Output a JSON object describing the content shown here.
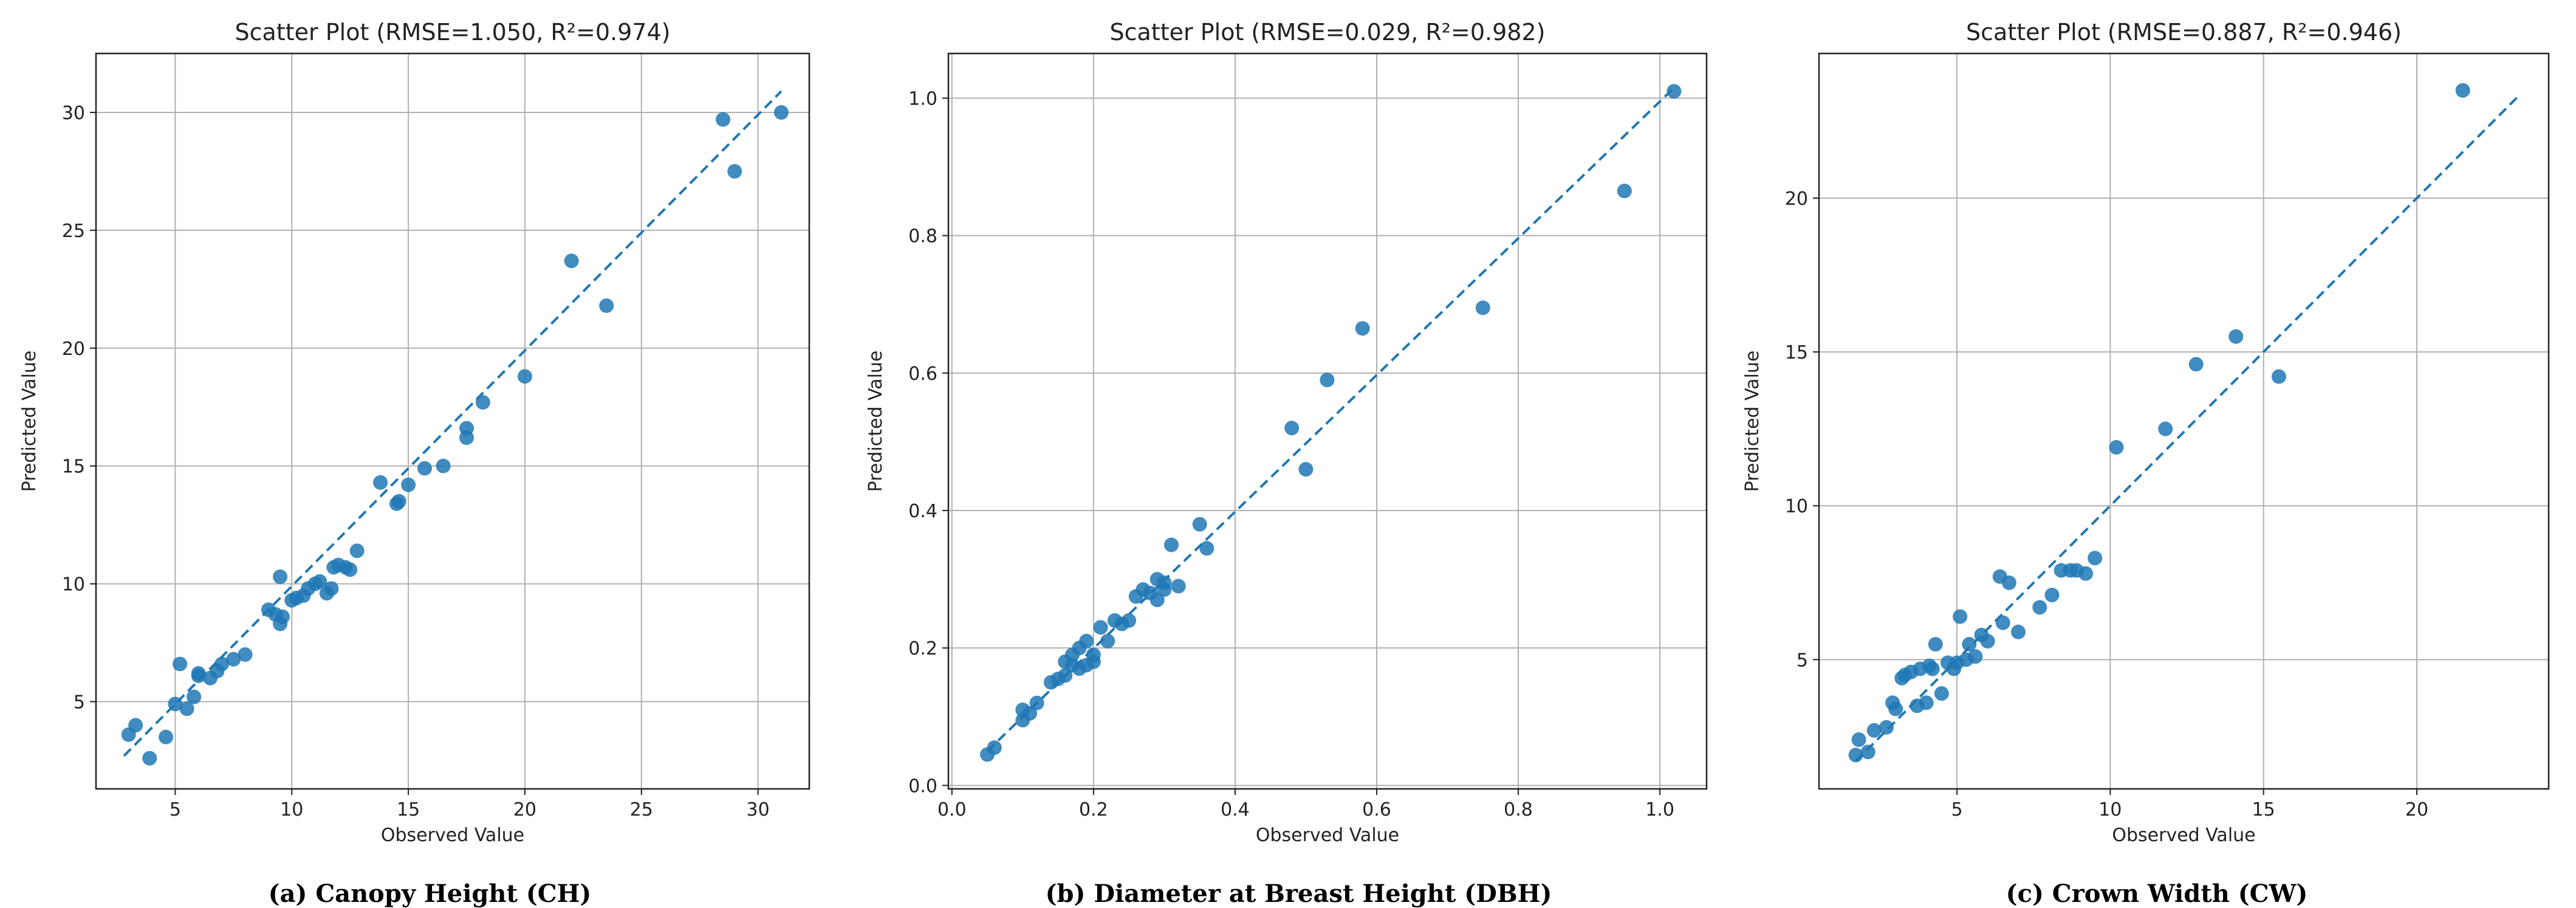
{
  "chart_data": [
    {
      "type": "scatter",
      "title": "Scatter Plot (RMSE=1.050, R²=0.974)",
      "xlabel": "Observed Value",
      "ylabel": "Predicted Value",
      "caption": "(a) Canopy Height (CH)",
      "xlim": [
        1.6,
        32.2
      ],
      "ylim": [
        1.3,
        32.5
      ],
      "xticks": [
        5,
        10,
        15,
        20,
        25,
        30
      ],
      "yticks": [
        5,
        10,
        15,
        20,
        25,
        30
      ],
      "grid": true,
      "point_color": "#1f77b4",
      "fit_line": {
        "style": "dashed",
        "color": "#1f77b4",
        "x": [
          2.8,
          31.0
        ],
        "y": [
          2.7,
          30.9
        ]
      },
      "points": {
        "x": [
          3.0,
          3.3,
          3.9,
          4.6,
          5.0,
          5.2,
          5.5,
          5.8,
          6.0,
          6.0,
          6.5,
          6.8,
          7.0,
          7.5,
          8.0,
          9.0,
          9.3,
          9.5,
          9.5,
          9.6,
          10.0,
          10.2,
          10.5,
          10.7,
          11.0,
          11.2,
          11.5,
          11.7,
          11.8,
          12.0,
          12.3,
          12.5,
          12.8,
          13.8,
          14.5,
          14.6,
          15.0,
          15.7,
          16.5,
          17.5,
          17.5,
          18.2,
          20.0,
          22.0,
          23.5,
          28.5,
          29.0,
          31.0
        ],
        "y": [
          3.6,
          4.0,
          2.6,
          3.5,
          4.9,
          6.6,
          4.7,
          5.2,
          6.1,
          6.2,
          6.0,
          6.3,
          6.6,
          6.8,
          7.0,
          8.9,
          8.7,
          8.3,
          10.3,
          8.6,
          9.3,
          9.4,
          9.5,
          9.8,
          10.0,
          10.1,
          9.6,
          9.8,
          10.7,
          10.8,
          10.7,
          10.6,
          11.4,
          14.3,
          13.4,
          13.5,
          14.2,
          14.9,
          15.0,
          16.2,
          16.6,
          17.7,
          18.8,
          23.7,
          21.8,
          29.7,
          27.5,
          30.0
        ]
      }
    },
    {
      "type": "scatter",
      "title": "Scatter Plot (RMSE=0.029, R²=0.982)",
      "xlabel": "Observed Value",
      "ylabel": "Predicted Value",
      "caption": "(b) Diameter at Breast Height (DBH)",
      "xlim": [
        -0.005,
        1.066
      ],
      "ylim": [
        -0.005,
        1.065
      ],
      "xticks": [
        0.0,
        0.2,
        0.4,
        0.6,
        0.8,
        1.0
      ],
      "xtick_labels": [
        "0.0",
        "0.2",
        "0.4",
        "0.6",
        "0.8",
        "1.0"
      ],
      "yticks": [
        0.0,
        0.2,
        0.4,
        0.6,
        0.8,
        1.0
      ],
      "ytick_labels": [
        "0.0",
        "0.2",
        "0.4",
        "0.6",
        "0.8",
        "1.0"
      ],
      "grid": true,
      "point_color": "#1f77b4",
      "fit_line": {
        "style": "dashed",
        "color": "#1f77b4",
        "x": [
          0.05,
          1.02
        ],
        "y": [
          0.05,
          1.015
        ]
      },
      "points": {
        "x": [
          0.05,
          0.06,
          0.1,
          0.1,
          0.11,
          0.12,
          0.14,
          0.15,
          0.16,
          0.16,
          0.17,
          0.17,
          0.18,
          0.18,
          0.19,
          0.19,
          0.2,
          0.2,
          0.21,
          0.22,
          0.23,
          0.24,
          0.25,
          0.26,
          0.27,
          0.28,
          0.29,
          0.29,
          0.3,
          0.3,
          0.31,
          0.32,
          0.35,
          0.36,
          0.48,
          0.5,
          0.53,
          0.58,
          0.75,
          0.95,
          1.02
        ],
        "y": [
          0.045,
          0.055,
          0.095,
          0.11,
          0.105,
          0.12,
          0.15,
          0.155,
          0.16,
          0.18,
          0.175,
          0.19,
          0.17,
          0.2,
          0.175,
          0.21,
          0.19,
          0.18,
          0.23,
          0.21,
          0.24,
          0.235,
          0.24,
          0.275,
          0.285,
          0.28,
          0.3,
          0.27,
          0.285,
          0.295,
          0.35,
          0.29,
          0.38,
          0.345,
          0.52,
          0.46,
          0.59,
          0.665,
          0.695,
          0.865,
          1.01
        ]
      }
    },
    {
      "type": "scatter",
      "title": "Scatter Plot (RMSE=0.887, R²=0.946)",
      "xlabel": "Observed Value",
      "ylabel": "Predicted Value",
      "caption": "(c) Crown Width (CW)",
      "xlim": [
        0.5,
        24.3
      ],
      "ylim": [
        0.8,
        24.7
      ],
      "xticks": [
        5,
        10,
        15,
        20
      ],
      "yticks": [
        5,
        10,
        15,
        20
      ],
      "grid": true,
      "point_color": "#1f77b4",
      "fit_line": {
        "style": "dashed",
        "color": "#1f77b4",
        "x": [
          1.7,
          23.3
        ],
        "y": [
          1.7,
          23.3
        ]
      },
      "points": {
        "x": [
          1.7,
          1.8,
          2.1,
          2.3,
          2.7,
          2.9,
          3.0,
          3.2,
          3.3,
          3.5,
          3.7,
          3.8,
          4.0,
          4.1,
          4.2,
          4.3,
          4.5,
          4.7,
          4.9,
          5.0,
          5.1,
          5.3,
          5.4,
          5.6,
          5.8,
          6.0,
          6.4,
          6.5,
          6.7,
          7.0,
          7.7,
          8.1,
          8.4,
          8.7,
          8.9,
          9.2,
          9.5,
          10.2,
          11.8,
          12.8,
          14.1,
          15.5,
          21.5
        ],
        "y": [
          1.9,
          2.4,
          2.0,
          2.7,
          2.8,
          3.6,
          3.4,
          4.4,
          4.5,
          4.6,
          3.5,
          4.7,
          3.6,
          4.8,
          4.7,
          5.5,
          3.9,
          4.9,
          4.7,
          4.9,
          6.4,
          5.0,
          5.5,
          5.1,
          5.8,
          5.6,
          7.7,
          6.2,
          7.5,
          5.9,
          6.7,
          7.1,
          7.9,
          7.9,
          7.9,
          7.8,
          8.3,
          11.9,
          12.5,
          14.6,
          15.5,
          14.2,
          23.5
        ]
      }
    }
  ]
}
